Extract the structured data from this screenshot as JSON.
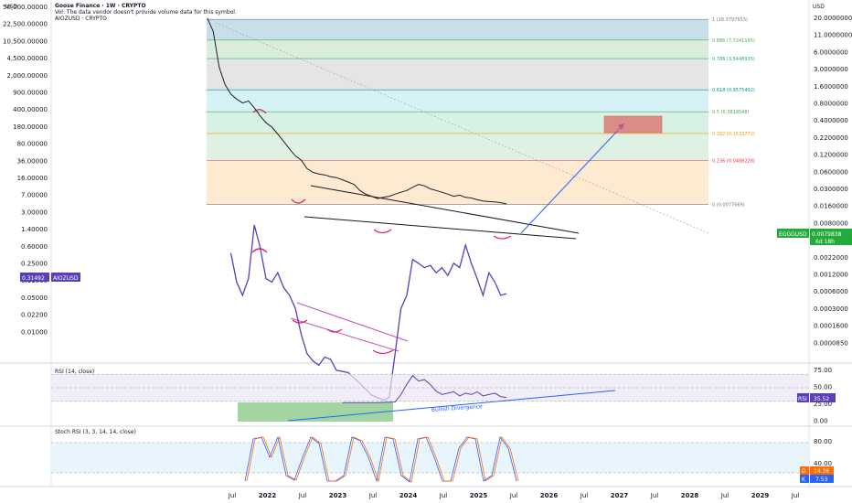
{
  "header": {
    "title": "Goose Finance · 1W · CRYPTO",
    "vol_note": "Vol: The data vendor doesn't provide volume data for this symbol.",
    "overlay_symbol": "AIOZUSD · CRYPTO",
    "currency": "USD"
  },
  "colors": {
    "fib_0": "#f7c6cc",
    "fib_236": "#fde2c2",
    "fib_382": "#d4ecd8",
    "fib_5": "#c9eedb",
    "fib_618": "#c8eef4",
    "fib_786": "#dcdcdc",
    "fib_886": "#cde6cd",
    "fib_1": "#b3d4e2",
    "price": "#1b1f2b",
    "overlay": "#5b3fb5",
    "rsi": "#5b3fb5",
    "stoch_k": "#2962ff",
    "stoch_d": "#ff6d00",
    "arrow": "#2962ff",
    "target_box": "#e06060",
    "arc": "#e0245e"
  },
  "chart_data": [
    {
      "type": "line",
      "title": "Goose Finance · 1W · CRYPTO",
      "series": [
        {
          "name": "EGGGUSD",
          "x": [
            "2021-03",
            "2021-04",
            "2021-05",
            "2021-06",
            "2021-07",
            "2021-08",
            "2021-09",
            "2021-10",
            "2021-11",
            "2021-12",
            "2022-01",
            "2022-02",
            "2022-03",
            "2022-04",
            "2022-05",
            "2022-06",
            "2022-07",
            "2022-08",
            "2022-09",
            "2022-10",
            "2022-11",
            "2022-12",
            "2023-01",
            "2023-02",
            "2023-03",
            "2023-04",
            "2023-05",
            "2023-06",
            "2023-07",
            "2023-08",
            "2023-09",
            "2023-10",
            "2023-11",
            "2023-12",
            "2024-01",
            "2024-02",
            "2024-03",
            "2024-04",
            "2024-05",
            "2024-06",
            "2024-07",
            "2024-08",
            "2024-09",
            "2024-10",
            "2024-11",
            "2024-12",
            "2025-01",
            "2025-02",
            "2025-03",
            "2025-04",
            "2025-05",
            "2025-06"
          ],
          "values": [
            19.5,
            11,
            2.5,
            1.2,
            0.8,
            0.65,
            0.55,
            0.6,
            0.45,
            0.32,
            0.24,
            0.2,
            0.15,
            0.11,
            0.08,
            0.06,
            0.05,
            0.035,
            0.03,
            0.028,
            0.027,
            0.025,
            0.024,
            0.022,
            0.02,
            0.018,
            0.014,
            0.012,
            0.011,
            0.01,
            0.0105,
            0.011,
            0.012,
            0.013,
            0.014,
            0.016,
            0.018,
            0.017,
            0.015,
            0.014,
            0.013,
            0.012,
            0.011,
            0.0115,
            0.0105,
            0.0102,
            0.0095,
            0.009,
            0.0088,
            0.0087,
            0.0084,
            0.00798
          ]
        },
        {
          "name": "AIOZUSD",
          "x": [
            "2021-07",
            "2021-08",
            "2021-09",
            "2021-10",
            "2021-11",
            "2021-12",
            "2022-01",
            "2022-02",
            "2022-03",
            "2022-04",
            "2022-05",
            "2022-06",
            "2022-07",
            "2022-08",
            "2022-09",
            "2022-10",
            "2022-11",
            "2022-12",
            "2023-01",
            "2023-03",
            "2023-05",
            "2023-07",
            "2023-09",
            "2023-10",
            "2023-11",
            "2023-12",
            "2024-01",
            "2024-02",
            "2024-03",
            "2024-04",
            "2024-05",
            "2024-06",
            "2024-07",
            "2024-08",
            "2024-09",
            "2024-10",
            "2024-11",
            "2024-12",
            "2025-01",
            "2025-02",
            "2025-03",
            "2025-04",
            "2025-05",
            "2025-06"
          ],
          "values": [
            1.1,
            0.45,
            0.3,
            0.5,
            2.6,
            1.3,
            0.5,
            0.45,
            0.6,
            0.38,
            0.3,
            0.2,
            0.09,
            0.05,
            0.04,
            0.035,
            0.045,
            0.042,
            0.03,
            0.028,
            0.02,
            0.014,
            0.012,
            0.013,
            0.05,
            0.2,
            0.3,
            0.9,
            0.8,
            0.7,
            0.75,
            0.6,
            0.7,
            0.55,
            0.8,
            0.7,
            1.4,
            0.8,
            0.5,
            0.3,
            0.6,
            0.45,
            0.3,
            0.31492
          ]
        }
      ],
      "y_left_ticks": [
        "50,000.00000",
        "22,500.00000",
        "10,500.00000",
        "4,500.00000",
        "2,000.00000",
        "900.00000",
        "400.00000",
        "180.00000",
        "80.00000",
        "36.00000",
        "16.00000",
        "7.00000",
        "3.00000",
        "1.40000",
        "0.60000",
        "0.25000",
        "0.11000",
        "0.05000",
        "0.02200",
        "0.01000"
      ],
      "y_right_ticks": [
        "20.0000000",
        "11.0000000",
        "6.0000000",
        "3.0000000",
        "1.6000000",
        "0.8000000",
        "0.4000000",
        "0.2200000",
        "0.1200000",
        "0.0600000",
        "0.0300000",
        "0.0160000",
        "0.0080000",
        "0.0040000",
        "0.0022000",
        "0.0012000",
        "0.0006000",
        "0.0003000",
        "0.0001600",
        "0.0000850"
      ],
      "x_ticks": [
        "Jul",
        "2022",
        "Jul",
        "2023",
        "Jul",
        "2024",
        "Jul",
        "2025",
        "Jul",
        "2026",
        "Jul",
        "2027",
        "Jul",
        "2028",
        "Jul",
        "2029",
        "Jul"
      ],
      "fib_levels": [
        {
          "label": "1 (18.3797553)"
        },
        {
          "label": "0.886 (7.7241195)"
        },
        {
          "label": "0.786 (3.5448935)"
        },
        {
          "label": "0.618 (0.9575492)"
        },
        {
          "label": "0.5 (0.3819548)"
        },
        {
          "label": "0.382 (0.1533772)"
        },
        {
          "label": "0.236 (0.0488228)"
        },
        {
          "label": "0 (0.0077669)"
        }
      ],
      "last_price": {
        "symbol": "EGGGUSD",
        "value": "0.0079838",
        "countdown": "6d 18h"
      },
      "overlay_last": {
        "value": "0.31492",
        "symbol": "AIOZUSD"
      }
    },
    {
      "type": "line",
      "title": "RSI (14, close)",
      "series": [
        {
          "name": "RSI",
          "x": [
            "2023-02",
            "2023-05",
            "2023-08",
            "2023-11",
            "2023-12",
            "2024-01",
            "2024-02",
            "2024-03",
            "2024-04",
            "2024-05",
            "2024-06",
            "2024-07",
            "2024-08",
            "2024-09",
            "2024-10",
            "2024-11",
            "2024-12",
            "2025-01",
            "2025-02",
            "2025-03",
            "2025-04",
            "2025-05",
            "2025-06"
          ],
          "values": [
            28,
            28,
            28,
            29,
            40,
            55,
            68,
            60,
            62,
            55,
            45,
            40,
            42,
            44,
            38,
            42,
            40,
            44,
            38,
            40,
            42,
            37,
            35.52
          ]
        }
      ],
      "y_ticks": [
        "75.00",
        "50.00",
        "25.00",
        "0.00"
      ],
      "current": "35.52",
      "annotation": "Bullish Divergence"
    },
    {
      "type": "line",
      "title": "Stoch RSI (3, 3, 14, 14, close)",
      "series": [
        {
          "name": "K",
          "current": "7.53"
        },
        {
          "name": "D",
          "current": "14.36"
        }
      ],
      "y_ticks": [
        "80.00",
        "40.00"
      ]
    }
  ]
}
